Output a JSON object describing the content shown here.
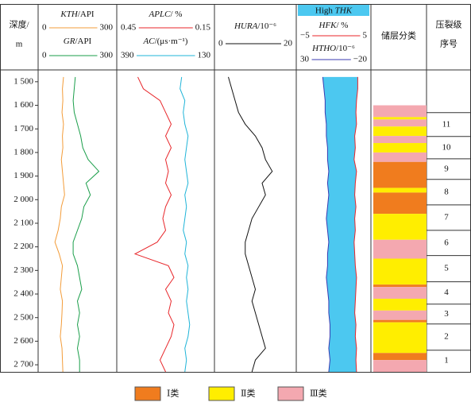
{
  "depth_axis": {
    "title": [
      "深度/",
      "m"
    ],
    "ylim": [
      1450,
      2730
    ],
    "ticks": [
      {
        "value": 1500,
        "label": "1 500"
      },
      {
        "value": 1600,
        "label": "1 600"
      },
      {
        "value": 1700,
        "label": "1 700"
      },
      {
        "value": 1800,
        "label": "1 800"
      },
      {
        "value": 1900,
        "label": "1 900"
      },
      {
        "value": 2000,
        "label": "2 000"
      },
      {
        "value": 2100,
        "label": "2 100"
      },
      {
        "value": 2200,
        "label": "2 200"
      },
      {
        "value": 2300,
        "label": "2 300"
      },
      {
        "value": 2400,
        "label": "2 400"
      },
      {
        "value": 2500,
        "label": "2 500"
      },
      {
        "value": 2600,
        "label": "2 600"
      },
      {
        "value": 2700,
        "label": "2 700"
      }
    ]
  },
  "depth": [
    1480,
    1530,
    1580,
    1630,
    1680,
    1730,
    1780,
    1830,
    1880,
    1930,
    1980,
    2030,
    2080,
    2130,
    2180,
    2230,
    2280,
    2330,
    2380,
    2430,
    2480,
    2530,
    2580,
    2630,
    2680,
    2730
  ],
  "tracks": [
    {
      "curves": [
        {
          "name": "KTH",
          "unit": "/API",
          "color": "#f39c39",
          "scale": [
            0,
            300
          ],
          "values": [
            85,
            80,
            82,
            78,
            85,
            80,
            82,
            75,
            80,
            85,
            90,
            75,
            70,
            60,
            45,
            65,
            80,
            75,
            70,
            80,
            78,
            75,
            70,
            78,
            80,
            82
          ]
        },
        {
          "name": "GR",
          "unit": "/API",
          "color": "#1a9e4a",
          "scale": [
            0,
            300
          ],
          "values": [
            140,
            135,
            130,
            135,
            150,
            165,
            175,
            200,
            250,
            190,
            210,
            180,
            170,
            150,
            130,
            130,
            150,
            160,
            170,
            150,
            160,
            150,
            160,
            150,
            160,
            160
          ]
        }
      ]
    },
    {
      "curves": [
        {
          "name": "APLC",
          "unit": "/ %",
          "color": "#e8262a",
          "scale": [
            0.45,
            0.15
          ],
          "values": [
            0.4,
            0.38,
            0.32,
            0.3,
            0.28,
            0.3,
            0.28,
            0.3,
            0.29,
            0.3,
            0.28,
            0.3,
            0.31,
            0.3,
            0.33,
            0.41,
            0.29,
            0.27,
            0.3,
            0.28,
            0.29,
            0.27,
            0.28,
            0.3,
            0.32,
            0.3
          ]
        },
        {
          "name": "AC",
          "unit": "/(μs·m⁻¹)",
          "color": "#1fb4d8",
          "scale": [
            390,
            130
          ],
          "values": [
            210,
            215,
            200,
            205,
            200,
            190,
            195,
            200,
            195,
            190,
            200,
            195,
            200,
            205,
            195,
            200,
            190,
            195,
            190,
            195,
            190,
            185,
            190,
            200,
            195,
            200
          ]
        }
      ]
    },
    {
      "curves": [
        {
          "name": "HURA",
          "unit": "/10⁻⁶",
          "color": "#111111",
          "scale": [
            0,
            20
          ],
          "values": [
            2,
            3,
            4,
            5,
            7,
            10,
            12,
            13,
            15,
            12,
            13,
            11,
            9,
            8,
            7,
            7,
            8,
            9,
            10,
            9,
            10,
            11,
            12,
            13,
            10,
            9
          ]
        }
      ]
    },
    {
      "fill": {
        "prefix": "High",
        "name": "THK",
        "color": "#4cc8f0"
      },
      "curves": [
        {
          "name": "HFK",
          "unit": "/ %",
          "color": "#e8262a",
          "scale": [
            {
              "value": -5,
              "label": "−5"
            },
            5
          ],
          "values": [
            4,
            4,
            3.8,
            3.7,
            3.8,
            3.5,
            3.6,
            3.4,
            3.8,
            3.6,
            3.5,
            3.7,
            3.5,
            3.6,
            3.4,
            3.5,
            3.6,
            3.8,
            3.7,
            3.6,
            3.5,
            3.7,
            3.6,
            3.8,
            3.7,
            3.8
          ]
        },
        {
          "name": "HTHO",
          "unit": "/10⁻⁶",
          "color": "#3a3ab0",
          "scale": [
            30,
            {
              "value": -20,
              "label": "−20"
            }
          ],
          "values": [
            14,
            13,
            12,
            12,
            11,
            11,
            10,
            10,
            9,
            10,
            9,
            10,
            11,
            10,
            9,
            10,
            10,
            11,
            10,
            9,
            9,
            8,
            8,
            9,
            8,
            9
          ]
        }
      ]
    }
  ],
  "facies": {
    "title": "储层分类",
    "classes": [
      {
        "label": "Ⅰ类",
        "color": "#f07c1e"
      },
      {
        "label": "Ⅱ类",
        "color": "#ffee00"
      },
      {
        "label": "Ⅲ类",
        "color": "#f4a8b0"
      }
    ],
    "intervals": [
      {
        "top": 1600,
        "bottom": 1650,
        "class": 2
      },
      {
        "top": 1650,
        "bottom": 1660,
        "class": 1
      },
      {
        "top": 1660,
        "bottom": 1690,
        "class": 2
      },
      {
        "top": 1690,
        "bottom": 1730,
        "class": 1
      },
      {
        "top": 1730,
        "bottom": 1760,
        "class": 2
      },
      {
        "top": 1760,
        "bottom": 1800,
        "class": 1
      },
      {
        "top": 1800,
        "bottom": 1840,
        "class": 2
      },
      {
        "top": 1840,
        "bottom": 1950,
        "class": 0
      },
      {
        "top": 1950,
        "bottom": 1970,
        "class": 1
      },
      {
        "top": 1970,
        "bottom": 2060,
        "class": 0
      },
      {
        "top": 2060,
        "bottom": 2170,
        "class": 1
      },
      {
        "top": 2170,
        "bottom": 2250,
        "class": 2
      },
      {
        "top": 2250,
        "bottom": 2360,
        "class": 1
      },
      {
        "top": 2360,
        "bottom": 2370,
        "class": 0
      },
      {
        "top": 2370,
        "bottom": 2420,
        "class": 2
      },
      {
        "top": 2420,
        "bottom": 2470,
        "class": 1
      },
      {
        "top": 2470,
        "bottom": 2510,
        "class": 2
      },
      {
        "top": 2510,
        "bottom": 2520,
        "class": 0
      },
      {
        "top": 2520,
        "bottom": 2650,
        "class": 1
      },
      {
        "top": 2650,
        "bottom": 2680,
        "class": 0
      },
      {
        "top": 2680,
        "bottom": 2730,
        "class": 2
      }
    ]
  },
  "fracture": {
    "title": [
      "压裂级",
      "序号"
    ],
    "stages": [
      {
        "label": 11,
        "top": 1631,
        "bottom": 1732
      },
      {
        "label": 10,
        "top": 1732,
        "bottom": 1827
      },
      {
        "label": 9,
        "top": 1827,
        "bottom": 1914
      },
      {
        "label": 8,
        "top": 1914,
        "bottom": 2022
      },
      {
        "label": 7,
        "top": 2022,
        "bottom": 2130
      },
      {
        "label": 6,
        "top": 2130,
        "bottom": 2237
      },
      {
        "label": 5,
        "top": 2237,
        "bottom": 2348
      },
      {
        "label": 4,
        "top": 2348,
        "bottom": 2443
      },
      {
        "label": 3,
        "top": 2443,
        "bottom": 2527
      },
      {
        "label": 2,
        "top": 2527,
        "bottom": 2638
      },
      {
        "label": 1,
        "top": 2638,
        "bottom": 2729
      }
    ]
  }
}
